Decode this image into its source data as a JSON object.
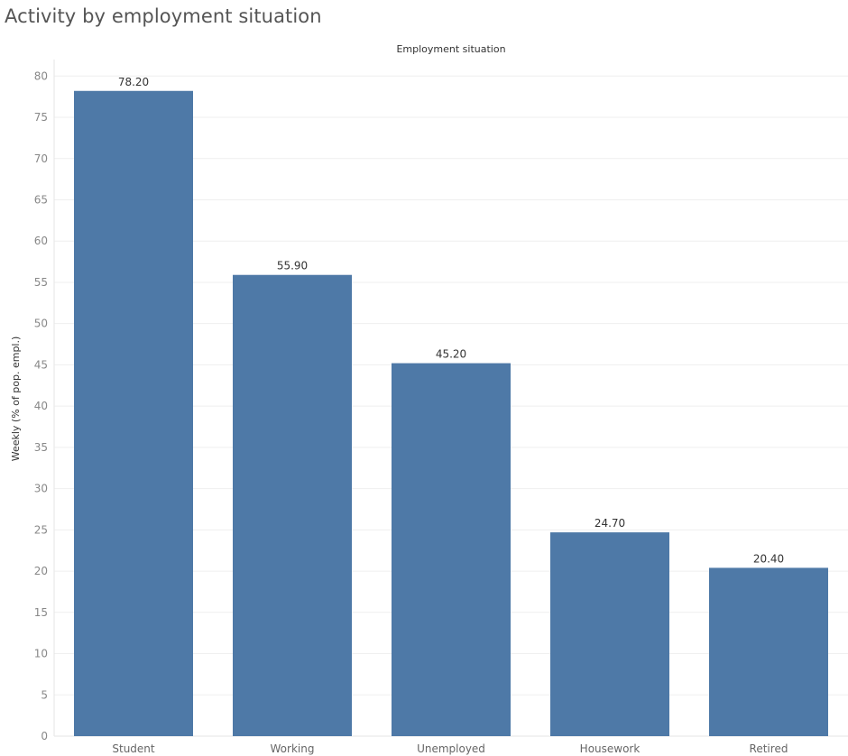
{
  "page": {
    "title": "Activity by employment situation"
  },
  "chart_data": {
    "type": "bar",
    "title": "Activity by employment situation",
    "header": "Employment situation",
    "xlabel": "",
    "ylabel": "Weekly (% of pop. empl.)",
    "categories": [
      "Student",
      "Working",
      "Unemployed",
      "Housework",
      "Retired"
    ],
    "values": [
      78.2,
      55.9,
      45.2,
      24.7,
      20.4
    ],
    "data_labels": [
      "78.20",
      "55.90",
      "45.20",
      "24.70",
      "20.40"
    ],
    "y_ticks": [
      0,
      5,
      10,
      15,
      20,
      25,
      30,
      35,
      40,
      45,
      50,
      55,
      60,
      65,
      70,
      75,
      80
    ],
    "ylim": [
      0,
      82
    ],
    "grid": true,
    "legend": "none",
    "colors": {
      "bar": "#4e79a7",
      "grid": "#efefef",
      "tick_text": "#888888"
    }
  }
}
